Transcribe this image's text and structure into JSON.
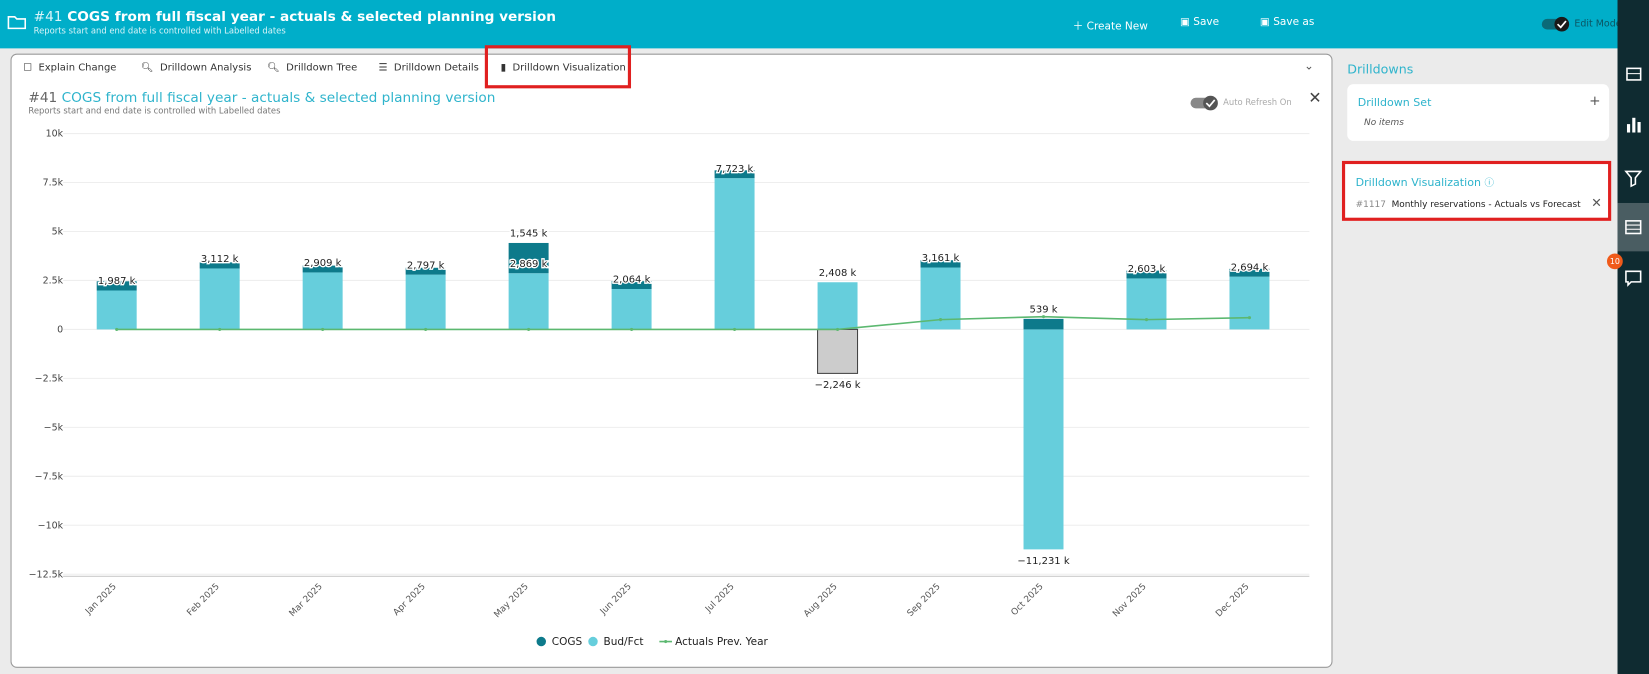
{
  "header": {
    "id": "#41",
    "title": "COGS from full fiscal year - actuals & selected planning version",
    "subtitle": "Reports start and end date is controlled with Labelled dates",
    "actions": [
      "Create New",
      "Save",
      "Save as"
    ],
    "mode": "Edit Mode"
  },
  "tabs": [
    "Explain Change",
    "Drilldown Analysis",
    "Drilldown Tree",
    "Drilldown Details",
    "Drilldown Visualization"
  ],
  "panel": {
    "id": "#41",
    "title": "COGS from full fiscal year - actuals & selected planning version",
    "subtitle": "Reports start and end date is controlled with Labelled dates",
    "refresh": "Auto Refresh On"
  },
  "sidebar": {
    "title": "Drilldowns",
    "set_title": "Drilldown Set",
    "set_empty": "No items",
    "viz_title": "Drilldown Visualization",
    "viz_id": "#1117",
    "viz_name": "Monthly reservations - Actuals vs Forecast",
    "badge": "10"
  },
  "chart_data": {
    "type": "bar",
    "stacked": true,
    "categories": [
      "Jan 2025",
      "Feb 2025",
      "Mar 2025",
      "Apr 2025",
      "May 2025",
      "Jun 2025",
      "Jul 2025",
      "Aug 2025",
      "Sep 2025",
      "Oct 2025",
      "Nov 2025",
      "Dec 2025"
    ],
    "series": [
      {
        "name": "COGS",
        "type": "bar",
        "color": "#0d7a8b",
        "colors": [
          "#0d7a8b",
          "#0d7a8b",
          "#0d7a8b",
          "#0d7a8b",
          "#0d7a8b",
          "#0d7a8b",
          "#0d7a8b",
          "#cccccc",
          "#0d7a8b",
          "#0d7a8b",
          "#0d7a8b",
          "#0d7a8b"
        ],
        "values": [
          470,
          310,
          350,
          350,
          1545,
          400,
          400,
          -2246,
          370,
          539,
          400,
          400
        ],
        "value_labels": [
          null,
          null,
          null,
          null,
          "1,545 k",
          null,
          null,
          "−2,246 k",
          null,
          "539 k",
          null,
          null
        ]
      },
      {
        "name": "Bud/Fct",
        "type": "bar",
        "color": "#66cedc",
        "values": [
          1987,
          3112,
          2909,
          2797,
          2869,
          2064,
          7723,
          2408,
          3161,
          -11231,
          2603,
          2694
        ],
        "value_labels": [
          "1,987 k",
          "3,112 k",
          "2,909 k",
          "2,797 k",
          "2,869 k",
          "2,064 k",
          "7,723 k",
          "2,408 k",
          "3,161 k",
          "−11,231 k",
          "2,603 k",
          "2,694 k"
        ]
      },
      {
        "name": "Actuals Prev. Year",
        "type": "line",
        "color": "#5cb870",
        "values": [
          0,
          0,
          0,
          0,
          0,
          0,
          0,
          0,
          500,
          650,
          500,
          600
        ]
      }
    ],
    "ylim": [
      -12500,
      10000
    ],
    "yticks": [
      {
        "value": -12500,
        "label": "−12.5k"
      },
      {
        "value": -10000,
        "label": "−10k"
      },
      {
        "value": -7500,
        "label": "−7.5k"
      },
      {
        "value": -5000,
        "label": "−5k"
      },
      {
        "value": -2500,
        "label": "−2.5k"
      },
      0,
      {
        "value": 2500,
        "label": "2.5k"
      },
      {
        "value": 5000,
        "label": "5k"
      },
      {
        "value": 7500,
        "label": "7.5k"
      },
      {
        "value": 10000,
        "label": "10k"
      }
    ],
    "grid": true,
    "legend": "bottom"
  }
}
